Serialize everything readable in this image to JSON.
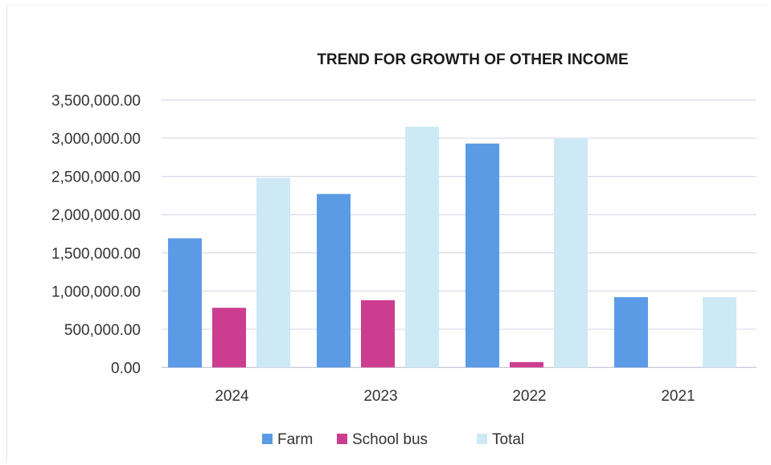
{
  "chart_data": {
    "type": "bar",
    "title": "TREND FOR GROWTH OF OTHER INCOME",
    "xlabel": "",
    "ylabel": "",
    "categories": [
      "2024",
      "2023",
      "2022",
      "2021"
    ],
    "series": [
      {
        "name": "Farm",
        "color": "#5b9be6",
        "values": [
          1690000,
          2270000,
          2930000,
          920000
        ]
      },
      {
        "name": "School bus",
        "color": "#cc3d8f",
        "values": [
          780000,
          880000,
          70000,
          0
        ]
      },
      {
        "name": "Total",
        "color": "#cde9f5",
        "values": [
          2480000,
          3150000,
          3000000,
          920000
        ]
      }
    ],
    "ylim": [
      0,
      3500000
    ],
    "yticks": [
      "0.00",
      "500,000.00",
      "1,000,000.00",
      "1,500,000.00",
      "2,000,000.00",
      "2,500,000.00",
      "3,000,000.00",
      "3,500,000.00"
    ],
    "ytick_values": [
      0,
      500000,
      1000000,
      1500000,
      2000000,
      2500000,
      3000000,
      3500000
    ],
    "grid": true,
    "gridline_color": "#d9d9ee",
    "legend_position": "bottom"
  }
}
